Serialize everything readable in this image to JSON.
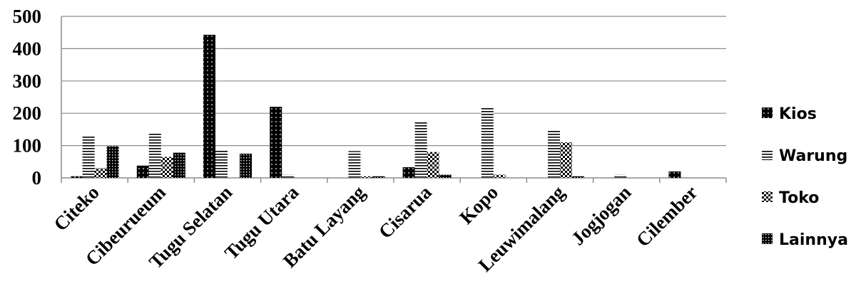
{
  "chart_data": {
    "type": "bar",
    "categories": [
      "Citeko",
      "Cibeurueum",
      "Tugu Selatan",
      "Tugu Utara",
      "Batu Layang",
      "Cisarua",
      "Kopo",
      "Leuwimalang",
      "Jogjogan",
      "Cilember"
    ],
    "series": [
      {
        "name": "Kios",
        "values": [
          5,
          38,
          443,
          220,
          0,
          33,
          0,
          0,
          0,
          20
        ],
        "pattern": "dots"
      },
      {
        "name": "Warung",
        "values": [
          128,
          138,
          85,
          10,
          83,
          173,
          218,
          147,
          10,
          0
        ],
        "pattern": "hlines"
      },
      {
        "name": "Toko",
        "values": [
          30,
          65,
          0,
          0,
          5,
          80,
          10,
          110,
          0,
          0
        ],
        "pattern": "checker"
      },
      {
        "name": "Lainnya",
        "values": [
          98,
          78,
          75,
          0,
          5,
          10,
          0,
          5,
          0,
          0
        ],
        "pattern": "grid"
      }
    ],
    "y_ticks": [
      "0",
      "100",
      "200",
      "300",
      "400",
      "500"
    ],
    "ylim": [
      0,
      500
    ],
    "grid": true,
    "legend_position": "right",
    "title": "",
    "xlabel": "",
    "ylabel": ""
  }
}
